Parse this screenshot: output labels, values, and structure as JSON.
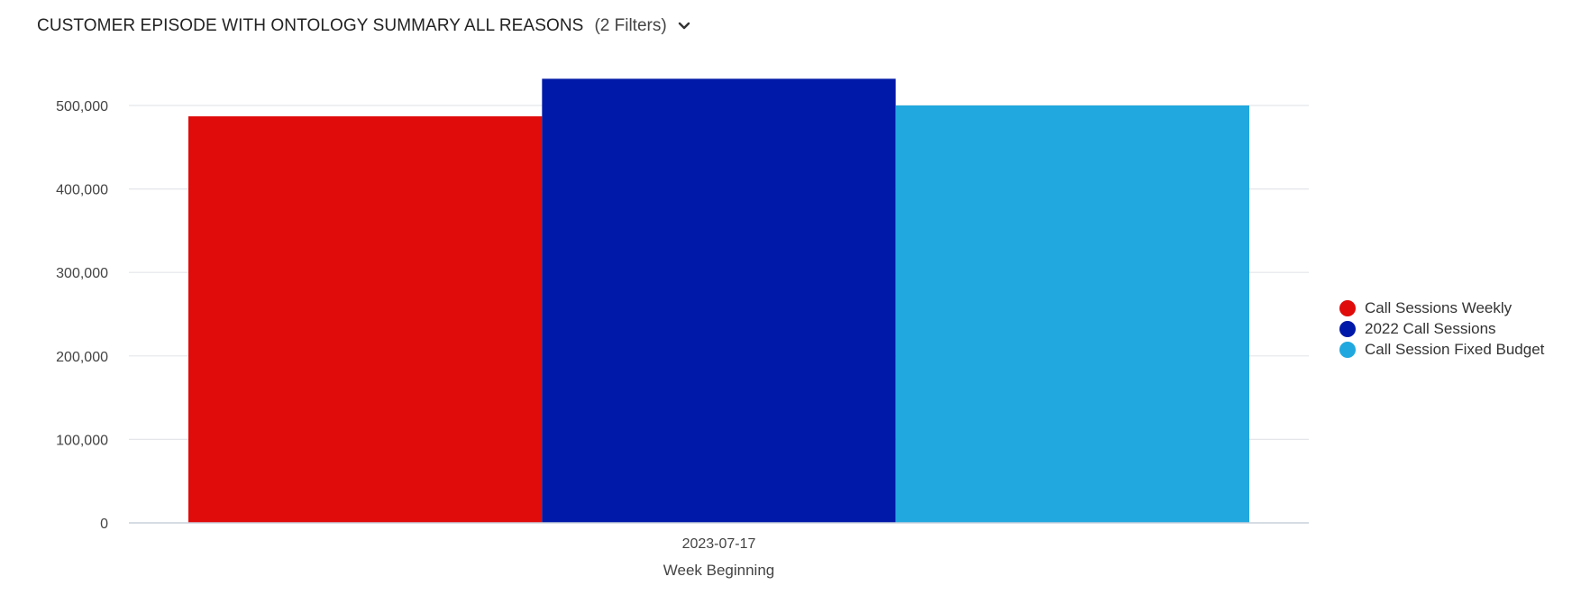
{
  "header": {
    "title": "CUSTOMER EPISODE WITH ONTOLOGY SUMMARY ALL REASONS",
    "filters_label": "(2 Filters)",
    "chevron_icon": "chevron-down-icon"
  },
  "chart_data": {
    "type": "bar",
    "title": "CUSTOMER EPISODE WITH ONTOLOGY SUMMARY ALL REASONS",
    "categories": [
      "2023-07-17"
    ],
    "series": [
      {
        "name": "Call Sessions Weekly",
        "values": [
          487000
        ],
        "color": "#e00b0b"
      },
      {
        "name": "2022 Call Sessions",
        "values": [
          532000
        ],
        "color": "#0019a8"
      },
      {
        "name": "Call Session Fixed Budget",
        "values": [
          500000
        ],
        "color": "#21a8df"
      }
    ],
    "xlabel": "Week Beginning",
    "ylabel": "",
    "ylim": [
      0,
      500000
    ],
    "yticks": [
      "0",
      "100,000",
      "200,000",
      "300,000",
      "400,000",
      "500,000"
    ],
    "grid": true,
    "legend_position": "right"
  }
}
